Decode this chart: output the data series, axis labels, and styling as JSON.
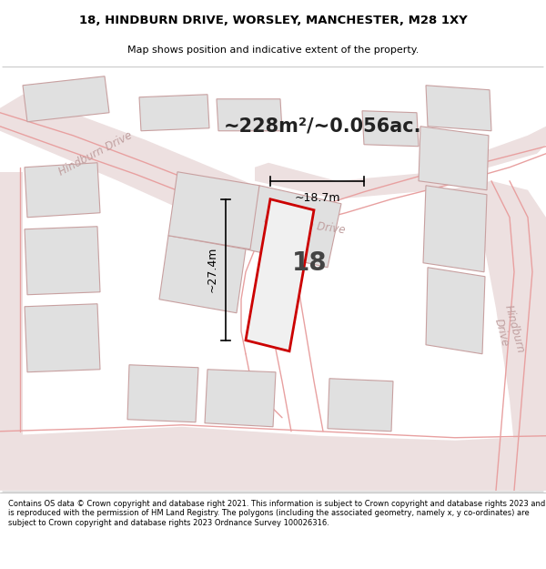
{
  "title_line1": "18, HINDBURN DRIVE, WORSLEY, MANCHESTER, M28 1XY",
  "title_line2": "Map shows position and indicative extent of the property.",
  "footer_text": "Contains OS data © Crown copyright and database right 2021. This information is subject to Crown copyright and database rights 2023 and is reproduced with the permission of HM Land Registry. The polygons (including the associated geometry, namely x, y co-ordinates) are subject to Crown copyright and database rights 2023 Ordnance Survey 100026316.",
  "map_bg": "#f5f5f5",
  "road_line_color": "#e8a0a0",
  "road_fill_color": "#ede0e0",
  "building_fill": "#e0e0e0",
  "building_edge": "#c8a0a0",
  "road_label_color": "#c0a0a0",
  "highlight_fill": "#f0f0f0",
  "highlight_edge": "#cc0000",
  "area_text": "~228m²/~0.056ac.",
  "number_text": "18",
  "dim_width": "~18.7m",
  "dim_height": "~27.4m"
}
